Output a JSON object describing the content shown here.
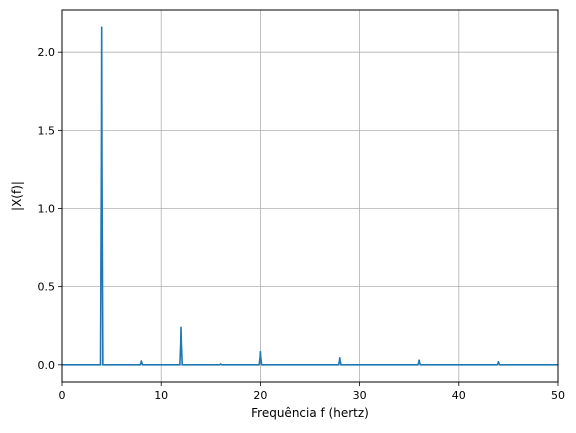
{
  "chart_data": {
    "type": "line",
    "title": "",
    "xlabel": "Frequência f (hertz)",
    "ylabel": "|X(f)|",
    "xlim": [
      0,
      50
    ],
    "ylim": [
      -0.11,
      2.27
    ],
    "xticks": [
      0,
      10,
      20,
      30,
      40,
      50
    ],
    "yticks": [
      0.0,
      0.5,
      1.0,
      1.5,
      2.0
    ],
    "xtick_labels": [
      "0",
      "10",
      "20",
      "30",
      "40",
      "50"
    ],
    "ytick_labels": [
      "0.0",
      "0.5",
      "1.0",
      "1.5",
      "2.0"
    ],
    "grid": true,
    "series": [
      {
        "color": "#1f77b4",
        "peaks": [
          {
            "x": 4,
            "y": 2.16
          },
          {
            "x": 8,
            "y": 0.025
          },
          {
            "x": 12,
            "y": 0.24
          },
          {
            "x": 16,
            "y": 0.005
          },
          {
            "x": 20,
            "y": 0.085
          },
          {
            "x": 28,
            "y": 0.045
          },
          {
            "x": 36,
            "y": 0.03
          },
          {
            "x": 44,
            "y": 0.02
          }
        ],
        "baseline": 0.0
      }
    ]
  }
}
